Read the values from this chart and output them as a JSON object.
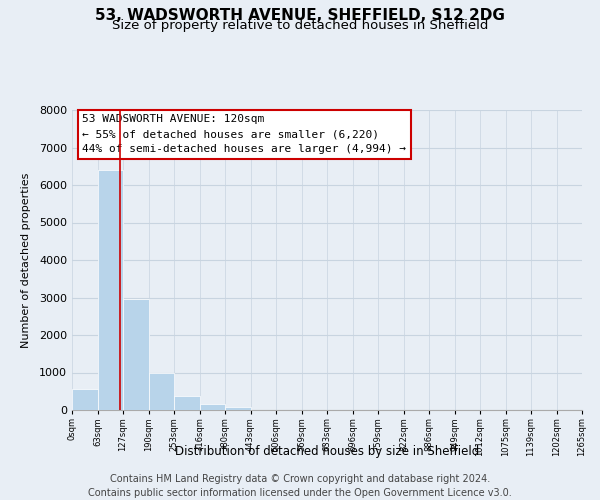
{
  "title": "53, WADSWORTH AVENUE, SHEFFIELD, S12 2DG",
  "subtitle": "Size of property relative to detached houses in Sheffield",
  "xlabel": "Distribution of detached houses by size in Sheffield",
  "ylabel": "Number of detached properties",
  "bar_heights": [
    560,
    6400,
    2950,
    975,
    375,
    165,
    85,
    0,
    0,
    0,
    0,
    0,
    0,
    0,
    0,
    0,
    0,
    0,
    0,
    0
  ],
  "bar_color": "#b8d4ea",
  "vline_x": 1.88,
  "vline_color": "#cc0000",
  "tick_labels": [
    "0sqm",
    "63sqm",
    "127sqm",
    "190sqm",
    "253sqm",
    "316sqm",
    "380sqm",
    "443sqm",
    "506sqm",
    "569sqm",
    "633sqm",
    "696sqm",
    "759sqm",
    "822sqm",
    "886sqm",
    "949sqm",
    "1012sqm",
    "1075sqm",
    "1139sqm",
    "1202sqm",
    "1265sqm"
  ],
  "ylim": [
    0,
    8000
  ],
  "yticks": [
    0,
    1000,
    2000,
    3000,
    4000,
    5000,
    6000,
    7000,
    8000
  ],
  "annotation_box_text": "53 WADSWORTH AVENUE: 120sqm\n← 55% of detached houses are smaller (6,220)\n44% of semi-detached houses are larger (4,994) →",
  "footer_line1": "Contains HM Land Registry data © Crown copyright and database right 2024.",
  "footer_line2": "Contains public sector information licensed under the Open Government Licence v3.0.",
  "background_color": "#e8eef5",
  "grid_color": "#c8d4e0",
  "title_fontsize": 11,
  "subtitle_fontsize": 9.5,
  "annotation_fontsize": 8,
  "footer_fontsize": 7
}
